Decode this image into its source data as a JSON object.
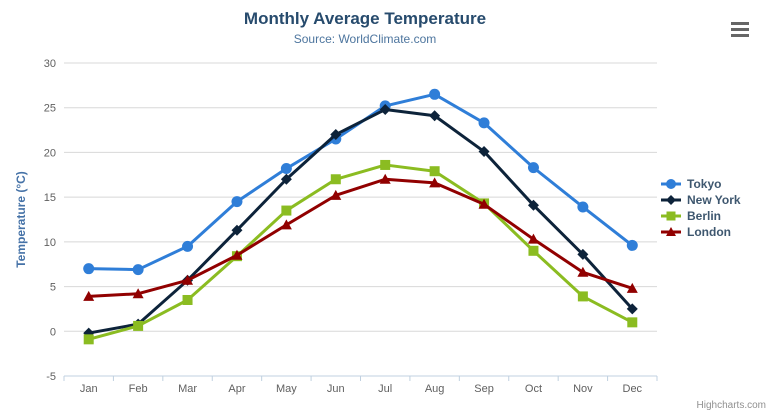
{
  "chart_data": {
    "type": "line",
    "title": "Monthly Average Temperature",
    "subtitle": "Source: WorldClimate.com",
    "categories": [
      "Jan",
      "Feb",
      "Mar",
      "Apr",
      "May",
      "Jun",
      "Jul",
      "Aug",
      "Sep",
      "Oct",
      "Nov",
      "Dec"
    ],
    "series": [
      {
        "name": "Tokyo",
        "color": "#2f7ed8",
        "marker": "circle",
        "values": [
          7.0,
          6.9,
          9.5,
          14.5,
          18.2,
          21.5,
          25.2,
          26.5,
          23.3,
          18.3,
          13.9,
          9.6
        ]
      },
      {
        "name": "New York",
        "color": "#0d233a",
        "marker": "diamond",
        "values": [
          -0.2,
          0.8,
          5.7,
          11.3,
          17.0,
          22.0,
          24.8,
          24.1,
          20.1,
          14.1,
          8.6,
          2.5
        ]
      },
      {
        "name": "Berlin",
        "color": "#8bbc21",
        "marker": "square",
        "values": [
          -0.9,
          0.6,
          3.5,
          8.4,
          13.5,
          17.0,
          18.6,
          17.9,
          14.3,
          9.0,
          3.9,
          1.0
        ]
      },
      {
        "name": "London",
        "color": "#910000",
        "marker": "triangle",
        "values": [
          3.9,
          4.2,
          5.7,
          8.5,
          11.9,
          15.2,
          17.0,
          16.6,
          14.2,
          10.3,
          6.6,
          4.8
        ]
      }
    ],
    "xlabel": "",
    "ylabel": "Temperature (°C)",
    "ylim": [
      -5,
      30
    ],
    "ytick_interval": 5,
    "grid": true,
    "legend_position": "right"
  },
  "colors": {
    "grid_line": "#d8d8d8",
    "axis_line": "#c0d0e0",
    "axis_label": "#606060",
    "axis_title": "#4572a7",
    "title": "#274b6d",
    "subtitle": "#4d759e",
    "legend_text": "#3e576f"
  },
  "credits": {
    "text": "Highcharts.com"
  },
  "export_menu": {
    "icon": "hamburger-icon"
  }
}
